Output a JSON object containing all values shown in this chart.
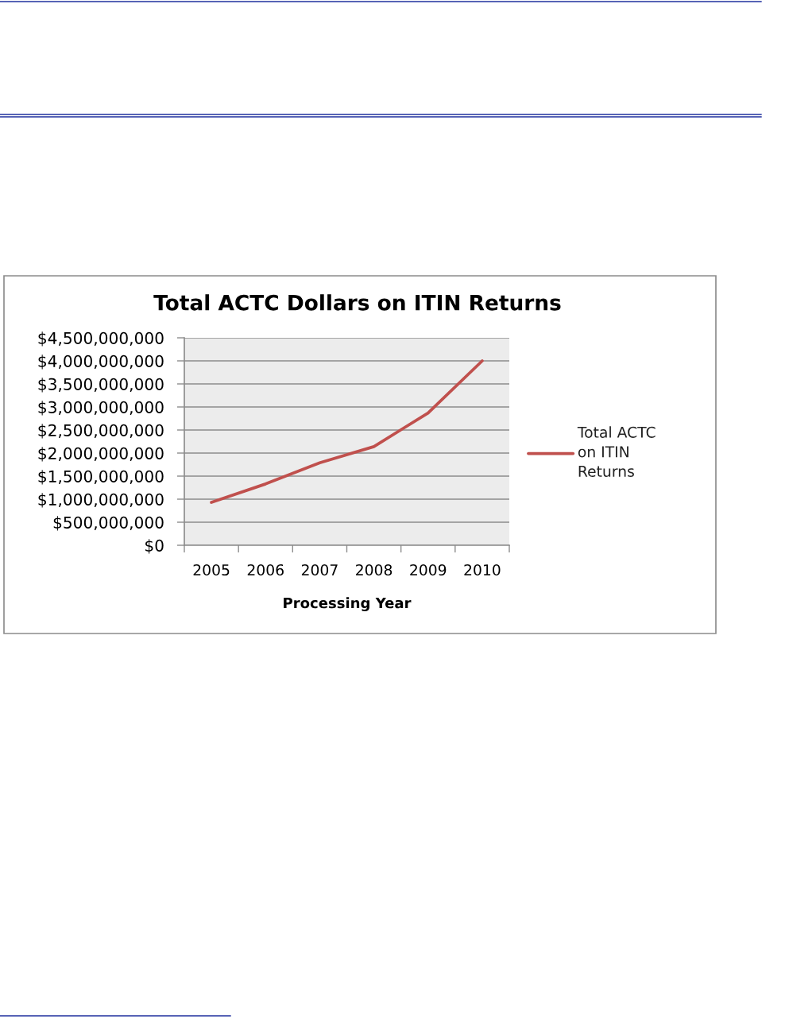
{
  "chart_data": {
    "type": "line",
    "title": "Total ACTC Dollars on ITIN Returns",
    "xlabel": "Processing Year",
    "categories": [
      "2005",
      "2006",
      "2007",
      "2008",
      "2009",
      "2010"
    ],
    "series": [
      {
        "name": "Total ACTC\non ITIN\nReturns",
        "color": "#c0504d",
        "values": [
          930000000,
          1330000000,
          1790000000,
          2140000000,
          2870000000,
          4000000000
        ]
      }
    ],
    "ylim": [
      0,
      4500000000
    ],
    "yticks": [
      {
        "value": 0,
        "label": "$0"
      },
      {
        "value": 500000000,
        "label": "$500,000,000"
      },
      {
        "value": 1000000000,
        "label": "$1,000,000,000"
      },
      {
        "value": 1500000000,
        "label": "$1,500,000,000"
      },
      {
        "value": 2000000000,
        "label": "$2,000,000,000"
      },
      {
        "value": 2500000000,
        "label": "$2,500,000,000"
      },
      {
        "value": 3000000000,
        "label": "$3,000,000,000"
      },
      {
        "value": 3500000000,
        "label": "$3,500,000,000"
      },
      {
        "value": 4000000000,
        "label": "$4,000,000,000"
      },
      {
        "value": 4500000000,
        "label": "$4,500,000,000"
      }
    ],
    "grid": "y",
    "legend": "right",
    "line_style": "solid"
  }
}
